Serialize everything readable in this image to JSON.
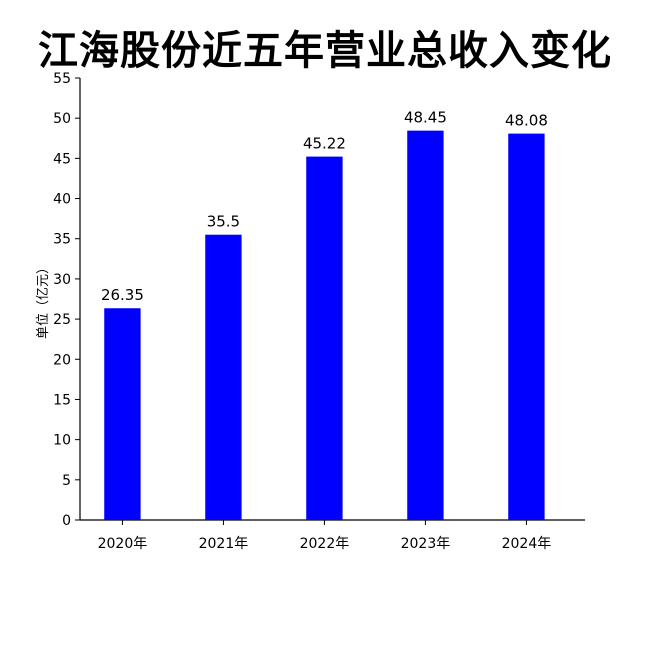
{
  "chart_data": {
    "type": "bar",
    "title": "江海股份近五年营业总收入变化",
    "ylabel": "单位（亿元）",
    "xlabel": "",
    "categories": [
      "2020年",
      "2021年",
      "2022年",
      "2023年",
      "2024年"
    ],
    "values": [
      26.35,
      35.5,
      45.22,
      48.45,
      48.08
    ],
    "data_labels": [
      "26.35",
      "35.5",
      "45.22",
      "48.45",
      "48.08"
    ],
    "ylim": [
      0,
      55
    ],
    "yticks": [
      0,
      5,
      10,
      15,
      20,
      25,
      30,
      35,
      40,
      45,
      50,
      55
    ],
    "bar_color": "#0000ff",
    "grid": false,
    "legend": "none"
  }
}
